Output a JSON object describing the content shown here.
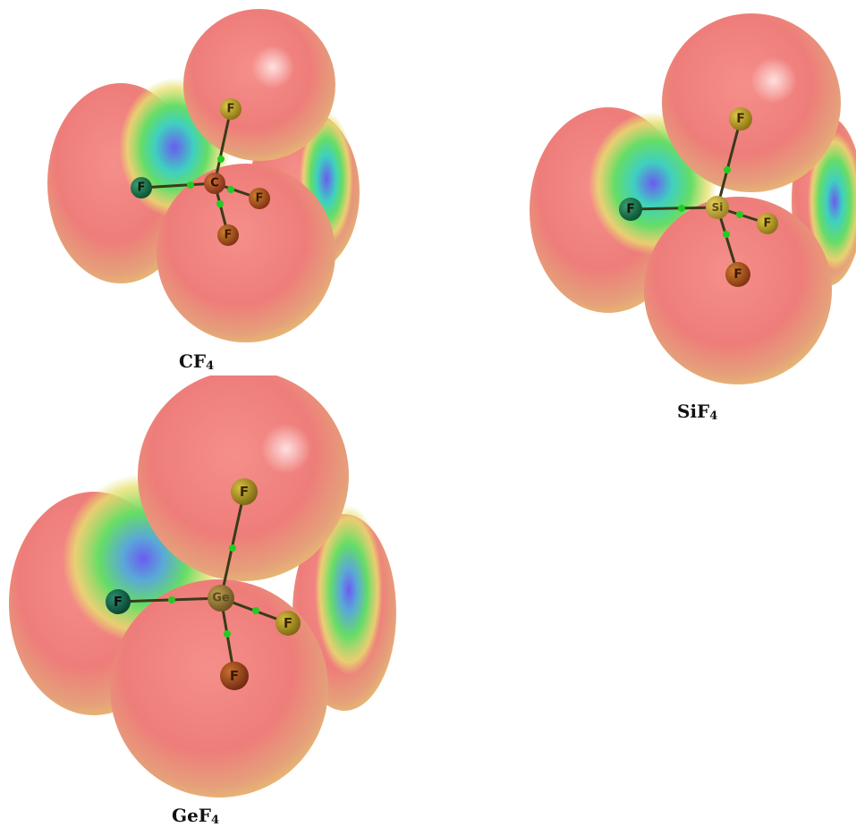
{
  "molecules": [
    {
      "id": "cf4",
      "label_main": "CF",
      "label_sub": "4",
      "central_atom": "C",
      "ligand_atom": "F"
    },
    {
      "id": "sif4",
      "label_main": "SiF",
      "label_sub": "4",
      "central_atom": "Si",
      "ligand_atom": "F"
    },
    {
      "id": "gef4",
      "label_main": "GeF",
      "label_sub": "4",
      "central_atom": "Ge",
      "ligand_atom": "F"
    }
  ],
  "colors": {
    "positive_potential": "#ee7777",
    "intermediate": "#e8e070",
    "neutral": "#66dd66",
    "negative_potential": "#6a5cf0",
    "bond": "#3a3a1a",
    "bond_critical_point": "#22cc22"
  }
}
